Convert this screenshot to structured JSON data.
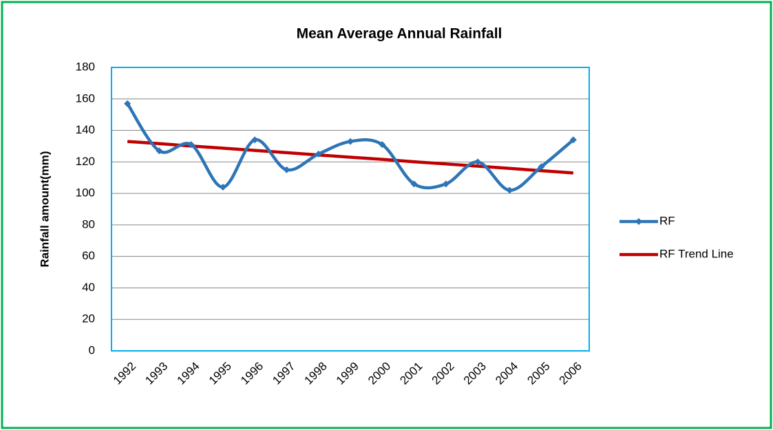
{
  "chart_data": {
    "type": "line",
    "title": "Mean Average Annual Rainfall",
    "y_label": "Rainfall amount(mm)",
    "categories": [
      "1992",
      "1993",
      "1994",
      "1995",
      "1996",
      "1997",
      "1998",
      "1999",
      "2000",
      "2001",
      "2002",
      "2003",
      "2004",
      "2005",
      "2006"
    ],
    "series": [
      {
        "name": "RF",
        "color": "#2e75b6",
        "smooth": true,
        "marker": "diamond",
        "values": [
          157,
          127,
          131,
          104,
          134,
          115,
          125,
          133,
          131,
          106,
          106,
          120,
          102,
          117,
          134
        ]
      },
      {
        "name": "RF Trend Line",
        "color": "#c00000",
        "smooth": false,
        "values": [
          133,
          131.6,
          130.1,
          128.7,
          127.3,
          125.9,
          124.4,
          123,
          121.6,
          120.1,
          118.7,
          117.3,
          115.9,
          114.4,
          113
        ]
      }
    ],
    "ylim": [
      0,
      180
    ],
    "yticks": [
      0,
      20,
      40,
      60,
      80,
      100,
      120,
      140,
      160,
      180
    ],
    "grid": true,
    "legend": "right"
  }
}
